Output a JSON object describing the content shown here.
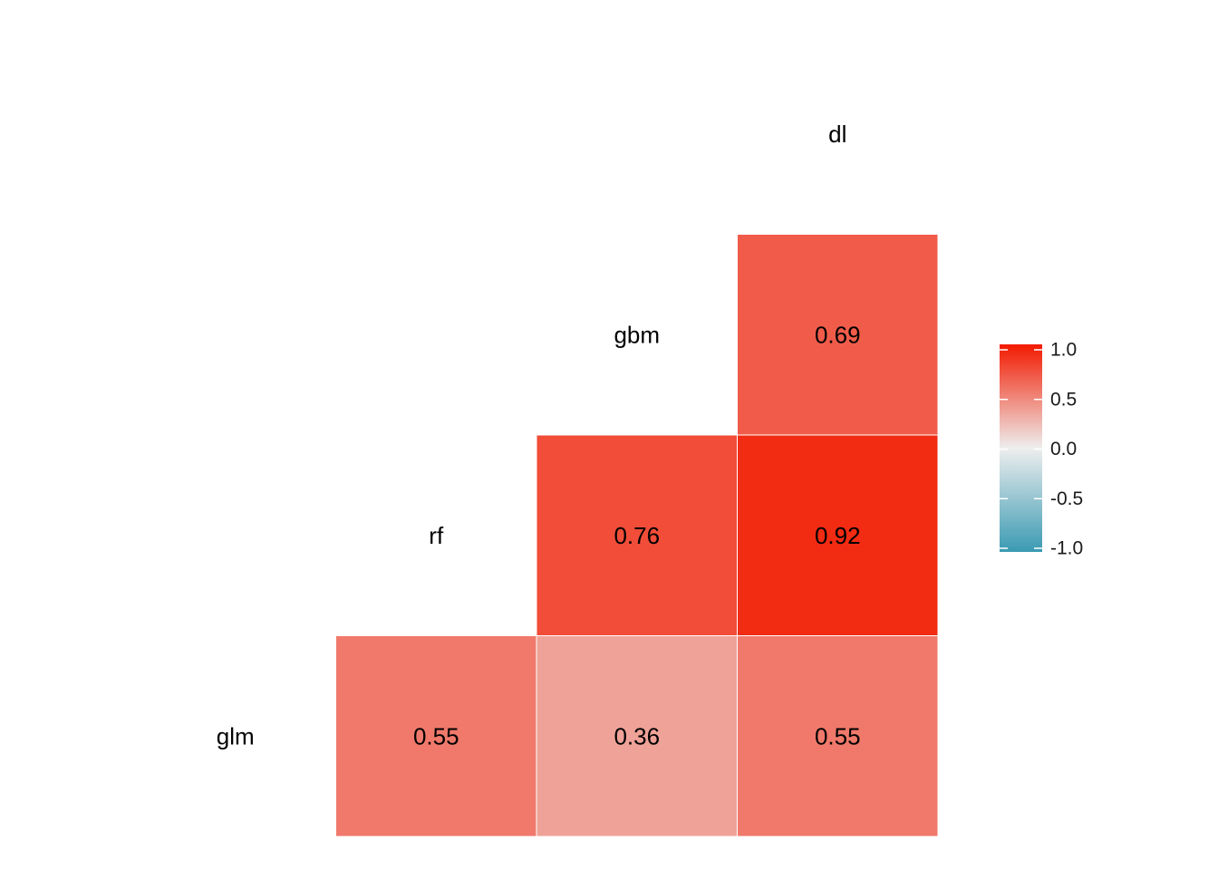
{
  "chart_data": {
    "type": "heatmap",
    "variables": [
      "glm",
      "rf",
      "gbm",
      "dl"
    ],
    "cells": [
      {
        "row": "glm",
        "col": "rf",
        "value": 0.55,
        "label": "0.55"
      },
      {
        "row": "glm",
        "col": "gbm",
        "value": 0.36,
        "label": "0.36"
      },
      {
        "row": "glm",
        "col": "dl",
        "value": 0.55,
        "label": "0.55"
      },
      {
        "row": "rf",
        "col": "gbm",
        "value": 0.76,
        "label": "0.76"
      },
      {
        "row": "rf",
        "col": "dl",
        "value": 0.92,
        "label": "0.92"
      },
      {
        "row": "gbm",
        "col": "dl",
        "value": 0.69,
        "label": "0.69"
      }
    ],
    "color_scale": {
      "low": "#3A9AB2",
      "mid": "#EEEEEE",
      "high": "#F21A00",
      "limits": [
        -1.0,
        1.0
      ]
    },
    "legend": {
      "position": "right",
      "ticks": [
        "1.0",
        "0.5",
        "0.0",
        "-0.5",
        "-1.0"
      ],
      "tick_values": [
        1.0,
        0.5,
        0.0,
        -0.5,
        -1.0
      ]
    },
    "grid": false
  }
}
